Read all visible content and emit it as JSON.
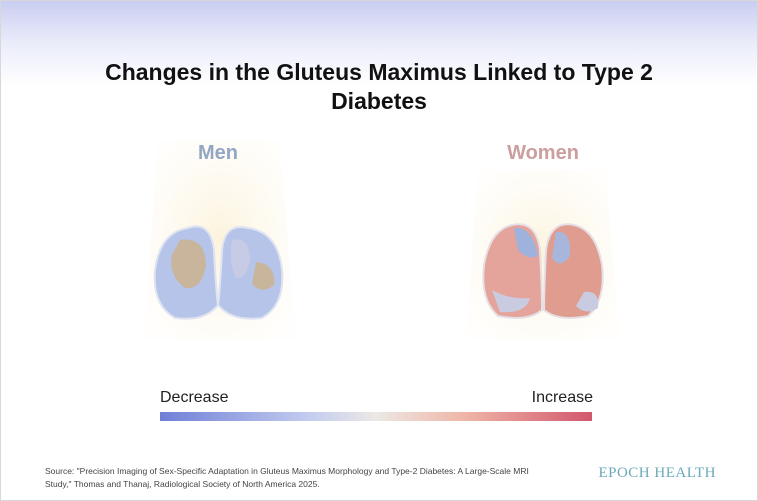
{
  "title": "Changes in the Gluteus Maximus Linked to Type 2 Diabetes",
  "panels": [
    "Men",
    "Women"
  ],
  "scale": {
    "low": "Decrease",
    "high": "Increase"
  },
  "source": "Source: \"Precision Imaging of Sex-Specific Adaptation in Gluteus Maximus Morphology and Type-2 Diabetes: A Large-Scale MRI Study,\" Thomas and Thanaj, Radiological Society of North America 2025.",
  "brand": "EPOCH HEALTH"
}
